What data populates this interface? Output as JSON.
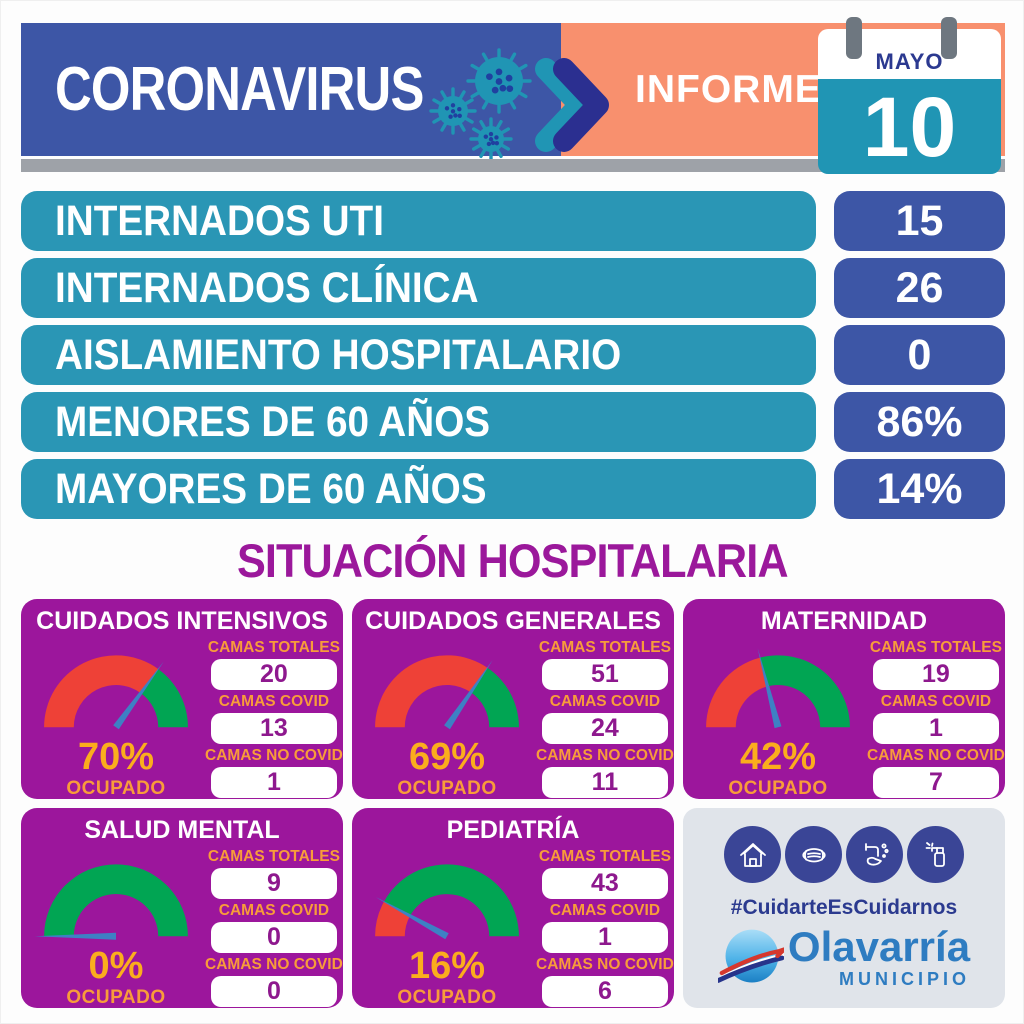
{
  "header": {
    "title": "CORONAVIRUS",
    "report_label": "INFORME",
    "calendar": {
      "month": "MAYO",
      "day": "10"
    },
    "icons": [
      "virus-icon",
      "double-chevron-right-icon",
      "calendar-icon"
    ]
  },
  "stats": [
    {
      "label": "INTERNADOS UTI",
      "value": "15"
    },
    {
      "label": "INTERNADOS CLÍNICA",
      "value": "26"
    },
    {
      "label": "AISLAMIENTO HOSPITALARIO",
      "value": "0"
    },
    {
      "label": "MENORES DE 60 AÑOS",
      "value": "86%"
    },
    {
      "label": "MAYORES DE 60 AÑOS",
      "value": "14%"
    }
  ],
  "section_title": "SITUACIÓN HOSPITALARIA",
  "cards": [
    {
      "title": "CUIDADOS INTENSIVOS",
      "pct": 70,
      "pct_label": "70%",
      "occupied_label": "OCUPADO",
      "beds": [
        {
          "label": "CAMAS TOTALES",
          "value": "20"
        },
        {
          "label": "CAMAS COVID",
          "value": "13"
        },
        {
          "label": "CAMAS NO COVID",
          "value": "1"
        }
      ]
    },
    {
      "title": "CUIDADOS GENERALES",
      "pct": 69,
      "pct_label": "69%",
      "occupied_label": "OCUPADO",
      "beds": [
        {
          "label": "CAMAS TOTALES",
          "value": "51"
        },
        {
          "label": "CAMAS COVID",
          "value": "24"
        },
        {
          "label": "CAMAS NO COVID",
          "value": "11"
        }
      ]
    },
    {
      "title": "MATERNIDAD",
      "pct": 42,
      "pct_label": "42%",
      "occupied_label": "OCUPADO",
      "beds": [
        {
          "label": "CAMAS TOTALES",
          "value": "19"
        },
        {
          "label": "CAMAS COVID",
          "value": "1"
        },
        {
          "label": "CAMAS NO COVID",
          "value": "7"
        }
      ]
    },
    {
      "title": "SALUD MENTAL",
      "pct": 0,
      "pct_label": "0%",
      "occupied_label": "OCUPADO",
      "beds": [
        {
          "label": "CAMAS TOTALES",
          "value": "9"
        },
        {
          "label": "CAMAS COVID",
          "value": "0"
        },
        {
          "label": "CAMAS NO COVID",
          "value": "0"
        }
      ]
    },
    {
      "title": "PEDIATRÍA",
      "pct": 16,
      "pct_label": "16%",
      "occupied_label": "OCUPADO",
      "beds": [
        {
          "label": "CAMAS TOTALES",
          "value": "43"
        },
        {
          "label": "CAMAS COVID",
          "value": "1"
        },
        {
          "label": "CAMAS NO COVID",
          "value": "6"
        }
      ]
    }
  ],
  "chart_data": [
    {
      "type": "gauge",
      "title": "CUIDADOS INTENSIVOS",
      "value": 70,
      "unit": "%",
      "range": [
        0,
        100
      ],
      "occupied_color": "#EE4137",
      "free_color": "#01A553",
      "camas_totales": 20,
      "camas_covid": 13,
      "camas_no_covid": 1
    },
    {
      "type": "gauge",
      "title": "CUIDADOS GENERALES",
      "value": 69,
      "unit": "%",
      "range": [
        0,
        100
      ],
      "occupied_color": "#EE4137",
      "free_color": "#01A553",
      "camas_totales": 51,
      "camas_covid": 24,
      "camas_no_covid": 11
    },
    {
      "type": "gauge",
      "title": "MATERNIDAD",
      "value": 42,
      "unit": "%",
      "range": [
        0,
        100
      ],
      "occupied_color": "#EE4137",
      "free_color": "#01A553",
      "camas_totales": 19,
      "camas_covid": 1,
      "camas_no_covid": 7
    },
    {
      "type": "gauge",
      "title": "SALUD MENTAL",
      "value": 0,
      "unit": "%",
      "range": [
        0,
        100
      ],
      "occupied_color": "#EE4137",
      "free_color": "#01A553",
      "camas_totales": 9,
      "camas_covid": 0,
      "camas_no_covid": 0
    },
    {
      "type": "gauge",
      "title": "PEDIATRÍA",
      "value": 16,
      "unit": "%",
      "range": [
        0,
        100
      ],
      "occupied_color": "#EE4137",
      "free_color": "#01A553",
      "camas_totales": 43,
      "camas_covid": 1,
      "camas_no_covid": 6
    }
  ],
  "footer": {
    "hashtag": "#CuidarteEsCuidarnos",
    "icons": [
      "house-icon",
      "face-mask-icon",
      "handwash-icon",
      "spray-bottle-icon"
    ],
    "logo": {
      "name": "Olavarría",
      "subtitle": "MUNICIPIO",
      "icon": "olavarria-logo-icon"
    }
  },
  "colors": {
    "header_blue": "#3D56A6",
    "header_orange": "#F8906E",
    "teal": "#2A96B5",
    "value_chip_navy": "#3D56A6",
    "divider_gray": "#9EA2A8",
    "card_purple": "#9C169C",
    "section_title_purple": "#9B189B",
    "label_orange": "#F89C3A",
    "pct_orange": "#FBAD1D",
    "gauge_red": "#EE4137",
    "gauge_green": "#01A553",
    "needle_blue": "#3E80C4",
    "footer_bg": "#E0E4EA",
    "footer_icon_navy": "#3A4596",
    "logo_blue": "#2E7CC1",
    "month_navy": "#2B3990"
  }
}
